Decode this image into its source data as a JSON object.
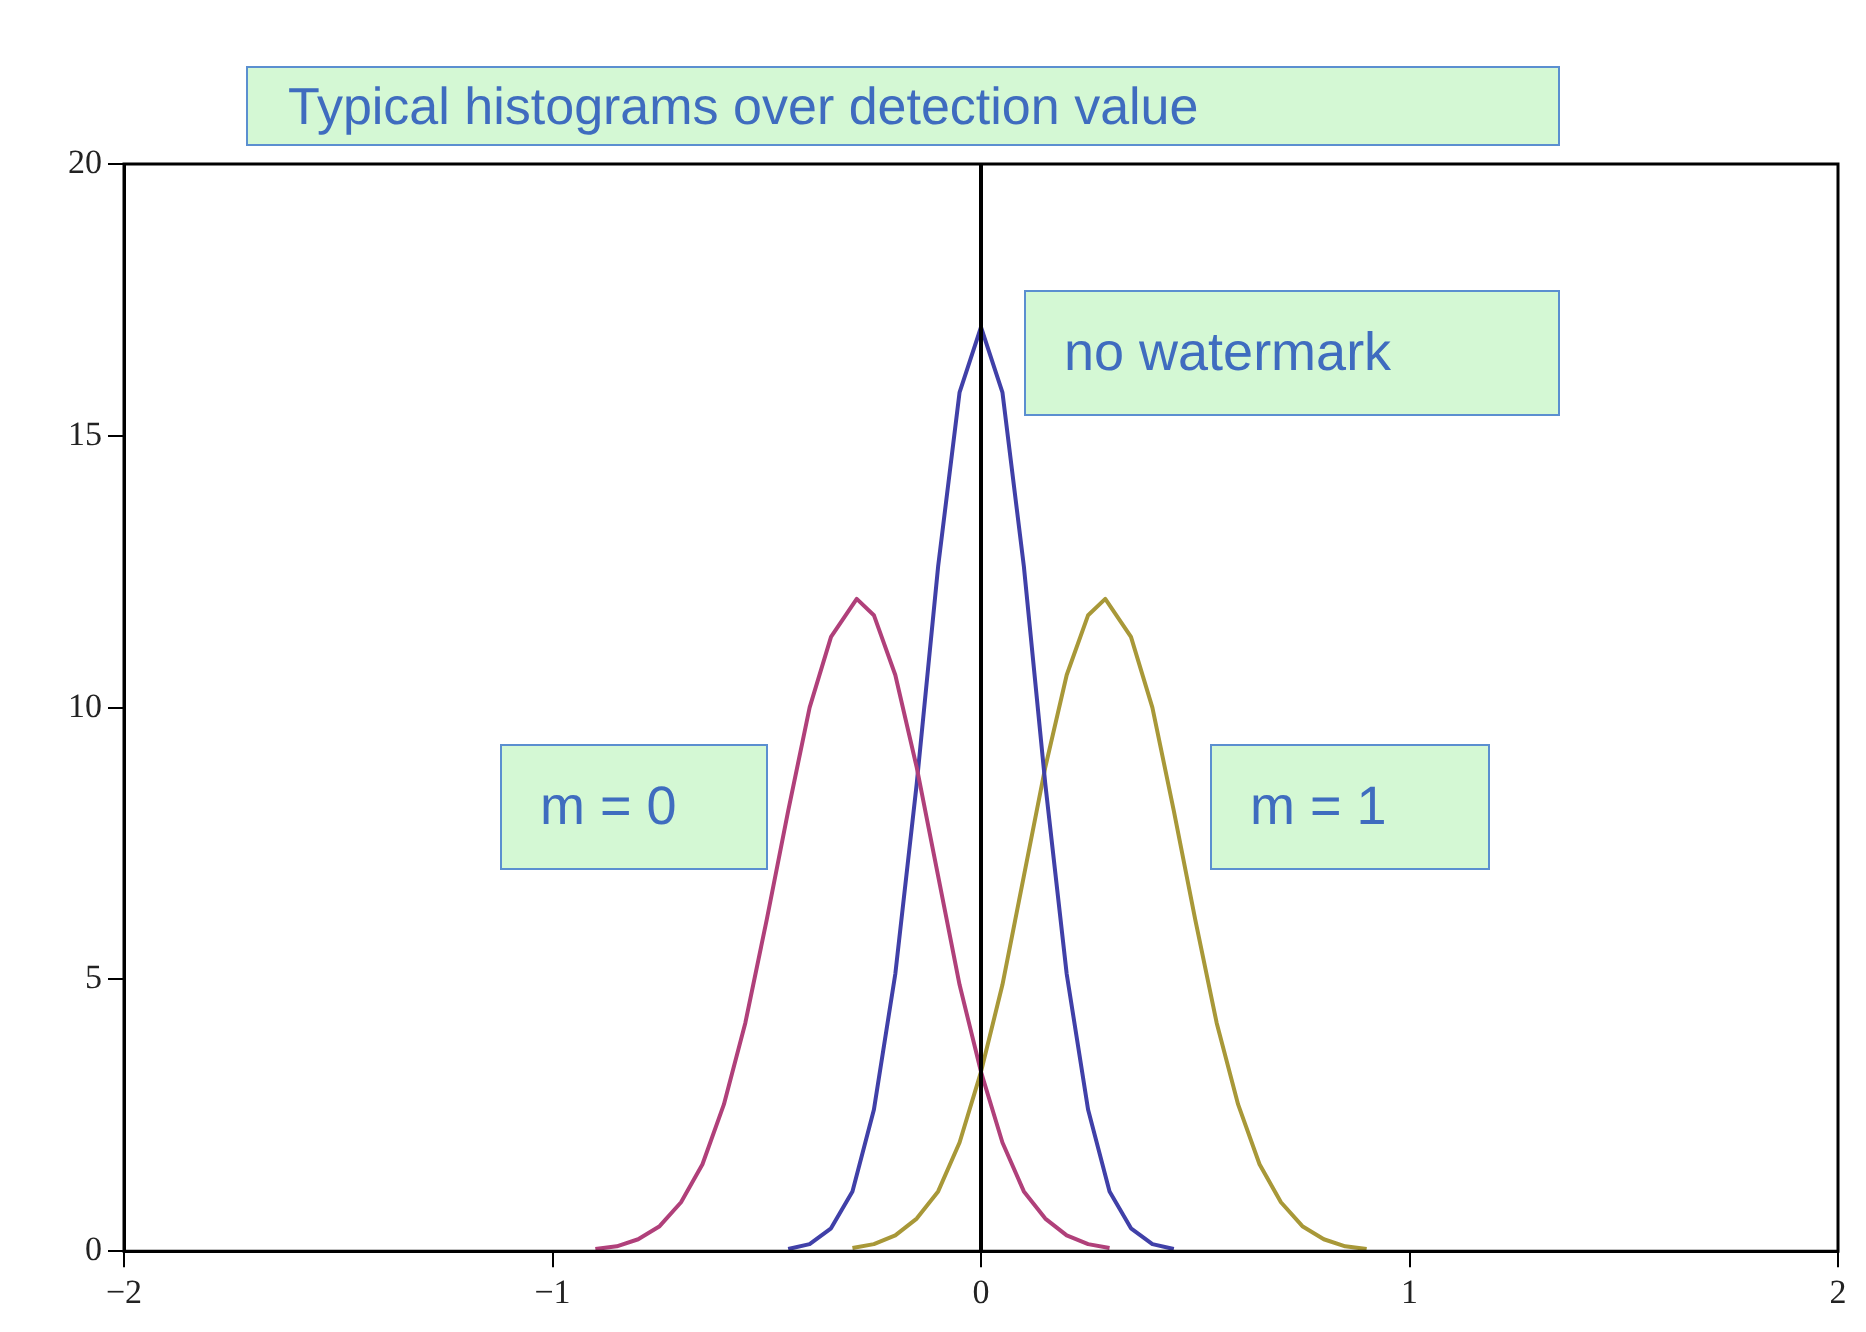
{
  "chart_data": {
    "type": "line",
    "title": "Typical histograms over detection value",
    "xlim": [
      -2,
      2
    ],
    "xticks": [
      {
        "value": -2,
        "label": "−2"
      },
      {
        "value": -1,
        "label": "−1"
      },
      0,
      1,
      2
    ],
    "ylim": [
      0,
      20
    ],
    "yticks": [
      0,
      5,
      10,
      15,
      20
    ],
    "grid": false,
    "legend": false,
    "ref_lines": [
      {
        "axis": "x",
        "value": 0,
        "color": "#000000"
      }
    ],
    "series": [
      {
        "name": "m = 0",
        "color": "#b0407a",
        "x": [
          -0.9,
          -0.85,
          -0.8,
          -0.75,
          -0.7,
          -0.65,
          -0.6,
          -0.55,
          -0.5,
          -0.45,
          -0.4,
          -0.35,
          -0.29,
          -0.25,
          -0.2,
          -0.15,
          -0.1,
          -0.05,
          0,
          0.05,
          0.1,
          0.15,
          0.2,
          0.25,
          0.3
        ],
        "values": [
          0.04,
          0.09,
          0.22,
          0.46,
          0.9,
          1.6,
          2.7,
          4.2,
          6.1,
          8.1,
          10.0,
          11.3,
          12,
          11.7,
          10.6,
          8.9,
          6.9,
          4.9,
          3.3,
          2.0,
          1.1,
          0.6,
          0.29,
          0.13,
          0.06
        ]
      },
      {
        "name": "no watermark",
        "color": "#4040a8",
        "x": [
          -0.45,
          -0.4,
          -0.35,
          -0.3,
          -0.25,
          -0.2,
          -0.15,
          -0.1,
          -0.05,
          0,
          0.05,
          0.1,
          0.15,
          0.2,
          0.25,
          0.3,
          0.35,
          0.4,
          0.45
        ],
        "values": [
          0.04,
          0.13,
          0.42,
          1.1,
          2.6,
          5.1,
          8.6,
          12.6,
          15.8,
          17,
          15.8,
          12.6,
          8.6,
          5.1,
          2.6,
          1.1,
          0.42,
          0.13,
          0.04
        ]
      },
      {
        "name": "m = 1",
        "color": "#a89838",
        "x": [
          -0.3,
          -0.25,
          -0.2,
          -0.15,
          -0.1,
          -0.05,
          0,
          0.05,
          0.1,
          0.15,
          0.2,
          0.25,
          0.29,
          0.35,
          0.4,
          0.45,
          0.5,
          0.55,
          0.6,
          0.65,
          0.7,
          0.75,
          0.8,
          0.85,
          0.9
        ],
        "values": [
          0.06,
          0.13,
          0.29,
          0.6,
          1.1,
          2.0,
          3.3,
          4.9,
          6.9,
          8.9,
          10.6,
          11.7,
          12,
          11.3,
          10.0,
          8.1,
          6.1,
          4.2,
          2.7,
          1.6,
          0.9,
          0.46,
          0.22,
          0.09,
          0.04
        ]
      }
    ]
  }
}
